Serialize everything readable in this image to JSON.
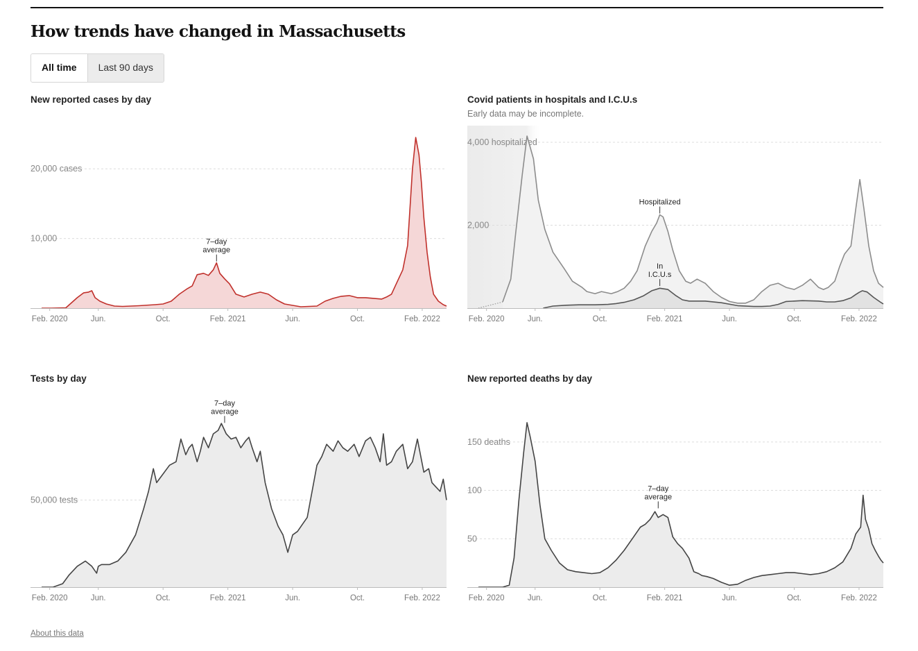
{
  "page": {
    "title": "How trends have changed in Massachusetts",
    "toggle": [
      "All time",
      "Last 90 days"
    ],
    "active": "All time",
    "about": "About this data"
  },
  "chart_data": [
    {
      "type": "area",
      "title": "New reported cases by day",
      "color": "#c0302b",
      "fill": "#f5d7d7",
      "ylim": [
        0,
        25000
      ],
      "yticks": [
        {
          "v": 20000,
          "label": "20,000 cases"
        },
        {
          "v": 10000,
          "label": "10,000"
        }
      ],
      "xlim": [
        0,
        25
      ],
      "xticks": [
        {
          "m": 0.5,
          "label": "Feb. 2020"
        },
        {
          "m": 3.5,
          "label": "Jun."
        },
        {
          "m": 7.5,
          "label": "Oct."
        },
        {
          "m": 11.5,
          "label": "Feb. 2021"
        },
        {
          "m": 15.5,
          "label": "Jun."
        },
        {
          "m": 19.5,
          "label": "Oct."
        },
        {
          "m": 23.5,
          "label": "Feb. 2022"
        }
      ],
      "annotation": {
        "label": [
          "7–day",
          "average"
        ],
        "m": 10.8,
        "y": 6500
      },
      "series": [
        {
          "x": [
            0,
            0.6,
            1.5,
            2.2,
            2.6,
            2.9,
            3.1,
            3.3,
            3.6,
            4.0,
            4.5,
            5,
            6,
            7,
            7.5,
            8,
            8.5,
            9,
            9.3,
            9.6,
            10,
            10.3,
            10.6,
            10.8,
            11,
            11.3,
            11.6,
            12,
            12.5,
            13,
            13.5,
            14,
            14.5,
            15,
            16,
            17,
            17.5,
            18,
            18.5,
            19,
            19.5,
            20,
            20.5,
            21,
            21.3,
            21.6,
            22,
            22.3,
            22.6,
            22.9,
            23.1,
            23.3,
            23.45,
            23.6,
            23.8,
            24.0,
            24.2,
            24.5,
            24.8,
            25
          ],
          "y": [
            0,
            0,
            50,
            1500,
            2200,
            2300,
            2500,
            1500,
            1000,
            600,
            300,
            250,
            350,
            500,
            600,
            1000,
            2000,
            2800,
            3200,
            4800,
            5000,
            4700,
            5500,
            6500,
            5000,
            4200,
            3500,
            2000,
            1600,
            2000,
            2300,
            2000,
            1200,
            600,
            200,
            300,
            1000,
            1400,
            1700,
            1800,
            1500,
            1500,
            1400,
            1300,
            1600,
            2000,
            4000,
            5500,
            9000,
            20000,
            24500,
            22000,
            18000,
            13000,
            8000,
            4500,
            2000,
            1000,
            500,
            300
          ]
        }
      ]
    },
    {
      "type": "area",
      "title": "Covid patients in hospitals and I.C.U.s",
      "subtitle": "Early data may be incomplete.",
      "ylim": [
        0,
        4200
      ],
      "yticks": [
        {
          "v": 4000,
          "label": "4,000 hospitalized"
        },
        {
          "v": 2000,
          "label": "2,000"
        }
      ],
      "xlim": [
        0,
        25
      ],
      "xticks": [
        {
          "m": 0.5,
          "label": "Feb. 2020"
        },
        {
          "m": 3.5,
          "label": "Jun."
        },
        {
          "m": 7.5,
          "label": "Oct."
        },
        {
          "m": 11.5,
          "label": "Feb. 2021"
        },
        {
          "m": 15.5,
          "label": "Jun."
        },
        {
          "m": 19.5,
          "label": "Oct."
        },
        {
          "m": 23.5,
          "label": "Feb. 2022"
        }
      ],
      "annotations": [
        {
          "label": [
            "Hospitalized"
          ],
          "m": 11.2,
          "y": 2250
        },
        {
          "label": [
            "In",
            "I.C.U.s"
          ],
          "m": 11.2,
          "y": 500
        }
      ],
      "series": [
        {
          "name": "Hospitalized",
          "color": "#8c8c8c",
          "fill": "#f2f2f2",
          "x": [
            1.5,
            2,
            2.3,
            2.7,
            3.0,
            3.4,
            3.7,
            4.1,
            4.6,
            5.3,
            5.8,
            6.4,
            6.7,
            7.2,
            7.6,
            8.2,
            8.6,
            9.0,
            9.4,
            9.8,
            10.3,
            10.7,
            11.0,
            11.2,
            11.4,
            11.7,
            12.0,
            12.4,
            12.8,
            13.1,
            13.5,
            14.0,
            14.5,
            15.0,
            15.5,
            16.0,
            16.5,
            17.0,
            17.5,
            18.0,
            18.5,
            19.0,
            19.5,
            20,
            20.5,
            21,
            21.3,
            21.6,
            22,
            22.3,
            22.6,
            23.0,
            23.3,
            23.55,
            23.8,
            24.1,
            24.4,
            24.7,
            25
          ],
          "y": [
            150,
            700,
            1800,
            3200,
            4150,
            3600,
            2600,
            1900,
            1350,
            950,
            650,
            500,
            400,
            350,
            400,
            350,
            400,
            480,
            650,
            900,
            1500,
            1850,
            2050,
            2250,
            2200,
            1850,
            1400,
            900,
            650,
            600,
            700,
            600,
            400,
            260,
            160,
            120,
            120,
            200,
            400,
            550,
            600,
            500,
            450,
            550,
            700,
            500,
            450,
            500,
            650,
            1000,
            1300,
            1500,
            2400,
            3100,
            2400,
            1500,
            900,
            600,
            500
          ]
        },
        {
          "name": "In I.C.U.s",
          "color": "#555555",
          "fill": "#e2e2e2",
          "x": [
            4.0,
            4.6,
            5.4,
            6.2,
            7.2,
            8.0,
            8.5,
            9.0,
            9.6,
            10.2,
            10.7,
            11.2,
            11.7,
            12.2,
            12.6,
            13.0,
            14,
            15,
            16,
            17,
            17.5,
            18,
            18.5,
            19,
            20,
            21,
            21.5,
            22,
            22.5,
            23,
            23.3,
            23.5,
            23.7,
            24,
            24.4,
            24.8,
            25
          ],
          "y": [
            0,
            50,
            70,
            80,
            80,
            90,
            110,
            140,
            200,
            300,
            420,
            480,
            450,
            300,
            200,
            170,
            170,
            130,
            60,
            40,
            40,
            50,
            90,
            160,
            180,
            170,
            150,
            150,
            180,
            250,
            330,
            380,
            420,
            390,
            260,
            150,
            100
          ]
        }
      ],
      "early_shade": [
        0,
        3.9
      ]
    },
    {
      "type": "area",
      "title": "Tests by day",
      "color": "#444444",
      "fill": "#ececec",
      "ylim": [
        0,
        100000
      ],
      "yticks": [
        {
          "v": 50000,
          "label": "50,000 tests"
        }
      ],
      "xlim": [
        0,
        25
      ],
      "xticks": [
        {
          "m": 0.5,
          "label": "Feb. 2020"
        },
        {
          "m": 3.5,
          "label": "Jun."
        },
        {
          "m": 7.5,
          "label": "Oct."
        },
        {
          "m": 11.5,
          "label": "Feb. 2021"
        },
        {
          "m": 15.5,
          "label": "Jun."
        },
        {
          "m": 19.5,
          "label": "Oct."
        },
        {
          "m": 23.5,
          "label": "Feb. 2022"
        }
      ],
      "annotation": {
        "label": [
          "7–day",
          "average"
        ],
        "m": 11.3,
        "y": 93500
      },
      "series": [
        {
          "x": [
            0,
            0.7,
            1.3,
            1.7,
            2.2,
            2.7,
            3.1,
            3.4,
            3.5,
            3.7,
            4.2,
            4.7,
            5.2,
            5.8,
            6.3,
            6.6,
            6.9,
            7.1,
            7.5,
            7.9,
            8.3,
            8.6,
            8.9,
            9.1,
            9.3,
            9.6,
            9.8,
            10.0,
            10.3,
            10.6,
            10.9,
            11.1,
            11.4,
            11.7,
            12.0,
            12.3,
            12.6,
            12.8,
            13.0,
            13.3,
            13.5,
            13.8,
            14.2,
            14.6,
            14.9,
            15.2,
            15.5,
            15.8,
            16.1,
            16.4,
            16.7,
            17.0,
            17.3,
            17.6,
            18.0,
            18.3,
            18.6,
            18.9,
            19.3,
            19.6,
            20.0,
            20.3,
            20.6,
            20.9,
            21.1,
            21.3,
            21.6,
            21.9,
            22.3,
            22.6,
            22.9,
            23.2,
            23.6,
            23.9,
            24.1,
            24.3,
            24.6,
            24.8,
            25
          ],
          "y": [
            0,
            0,
            2000,
            7000,
            12000,
            15000,
            12000,
            8000,
            12000,
            13000,
            13000,
            15000,
            20000,
            30000,
            45000,
            55000,
            68000,
            60000,
            65000,
            70000,
            72000,
            85000,
            76000,
            80000,
            82000,
            72000,
            78000,
            86000,
            80000,
            88000,
            90000,
            94000,
            88000,
            85000,
            86000,
            80000,
            84000,
            86000,
            80000,
            72000,
            78000,
            60000,
            45000,
            35000,
            30000,
            20000,
            30000,
            32000,
            36000,
            40000,
            55000,
            70000,
            75000,
            82000,
            78000,
            84000,
            80000,
            78000,
            82000,
            75000,
            84000,
            86000,
            80000,
            72000,
            88000,
            70000,
            72000,
            78000,
            82000,
            68000,
            72000,
            85000,
            66000,
            68000,
            60000,
            58000,
            55000,
            62000,
            50000
          ]
        }
      ]
    },
    {
      "type": "area",
      "title": "New reported deaths by day",
      "color": "#444444",
      "fill": "#ececec",
      "ylim": [
        0,
        180
      ],
      "yticks": [
        {
          "v": 150,
          "label": "150 deaths"
        },
        {
          "v": 100,
          "label": "100"
        },
        {
          "v": 50,
          "label": "50"
        }
      ],
      "xlim": [
        0,
        25
      ],
      "xticks": [
        {
          "m": 0.5,
          "label": "Feb. 2020"
        },
        {
          "m": 3.5,
          "label": "Jun."
        },
        {
          "m": 7.5,
          "label": "Oct."
        },
        {
          "m": 11.5,
          "label": "Feb. 2021"
        },
        {
          "m": 15.5,
          "label": "Jun."
        },
        {
          "m": 19.5,
          "label": "Oct."
        },
        {
          "m": 23.5,
          "label": "Feb. 2022"
        }
      ],
      "annotation": {
        "label": [
          "7–day",
          "average"
        ],
        "m": 11.1,
        "y": 80
      },
      "series": [
        {
          "x": [
            0,
            1.5,
            1.9,
            2.2,
            2.5,
            2.8,
            3.0,
            3.2,
            3.5,
            3.8,
            4.1,
            4.5,
            5,
            5.5,
            6,
            6.5,
            7,
            7.5,
            8,
            8.5,
            9,
            9.5,
            10,
            10.3,
            10.6,
            10.9,
            11.1,
            11.4,
            11.7,
            12.0,
            12.3,
            12.6,
            13,
            13.3,
            13.6,
            13.8,
            14.1,
            14.5,
            15,
            15.5,
            16,
            16.5,
            17,
            17.5,
            18,
            18.5,
            19,
            19.5,
            20,
            20.5,
            21,
            21.5,
            22,
            22.5,
            23,
            23.3,
            23.6,
            23.75,
            23.9,
            24.1,
            24.3,
            24.5,
            24.7,
            24.85,
            25
          ],
          "y": [
            0,
            0,
            2,
            30,
            90,
            140,
            170,
            155,
            130,
            85,
            50,
            38,
            25,
            18,
            16,
            15,
            14,
            15,
            20,
            28,
            38,
            50,
            62,
            65,
            70,
            78,
            72,
            75,
            72,
            52,
            45,
            40,
            30,
            16,
            14,
            12,
            11,
            9,
            5,
            2,
            3,
            7,
            10,
            12,
            13,
            14,
            15,
            15,
            14,
            13,
            14,
            16,
            20,
            26,
            40,
            55,
            62,
            95,
            70,
            60,
            45,
            38,
            32,
            28,
            25
          ]
        }
      ]
    }
  ]
}
